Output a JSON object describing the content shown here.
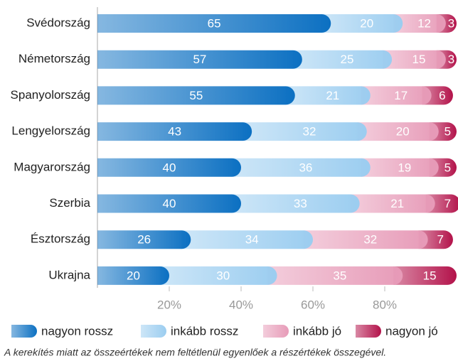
{
  "chart_data": {
    "type": "stacked-barh",
    "categories": [
      "Svédország",
      "Németország",
      "Spanyolország",
      "Lengyelország",
      "Magyarország",
      "Szerbia",
      "Észtország",
      "Ukrajna"
    ],
    "series": [
      {
        "name": "nagyon rossz",
        "color": "#0c70c2",
        "values": [
          65,
          57,
          55,
          43,
          40,
          40,
          26,
          20
        ]
      },
      {
        "name": "inkább rossz",
        "color": "#9bcdf0",
        "values": [
          20,
          25,
          21,
          32,
          36,
          33,
          34,
          30
        ]
      },
      {
        "name": "inkább jó",
        "color": "#e79bb8",
        "values": [
          12,
          15,
          17,
          20,
          19,
          21,
          32,
          35
        ]
      },
      {
        "name": "nagyon jó",
        "color": "#b3124a",
        "values": [
          3,
          3,
          6,
          5,
          5,
          7,
          7,
          15
        ]
      }
    ],
    "xlim": [
      0,
      100
    ],
    "xticks": [
      {
        "value": 20,
        "label": "20%"
      },
      {
        "value": 40,
        "label": "40%"
      },
      {
        "value": 60,
        "label": "60%"
      },
      {
        "value": 80,
        "label": "80%"
      }
    ],
    "note": "A kerekítés miatt az összeértékek nem feltétlenül egyenlőek a részértékek összegével."
  }
}
